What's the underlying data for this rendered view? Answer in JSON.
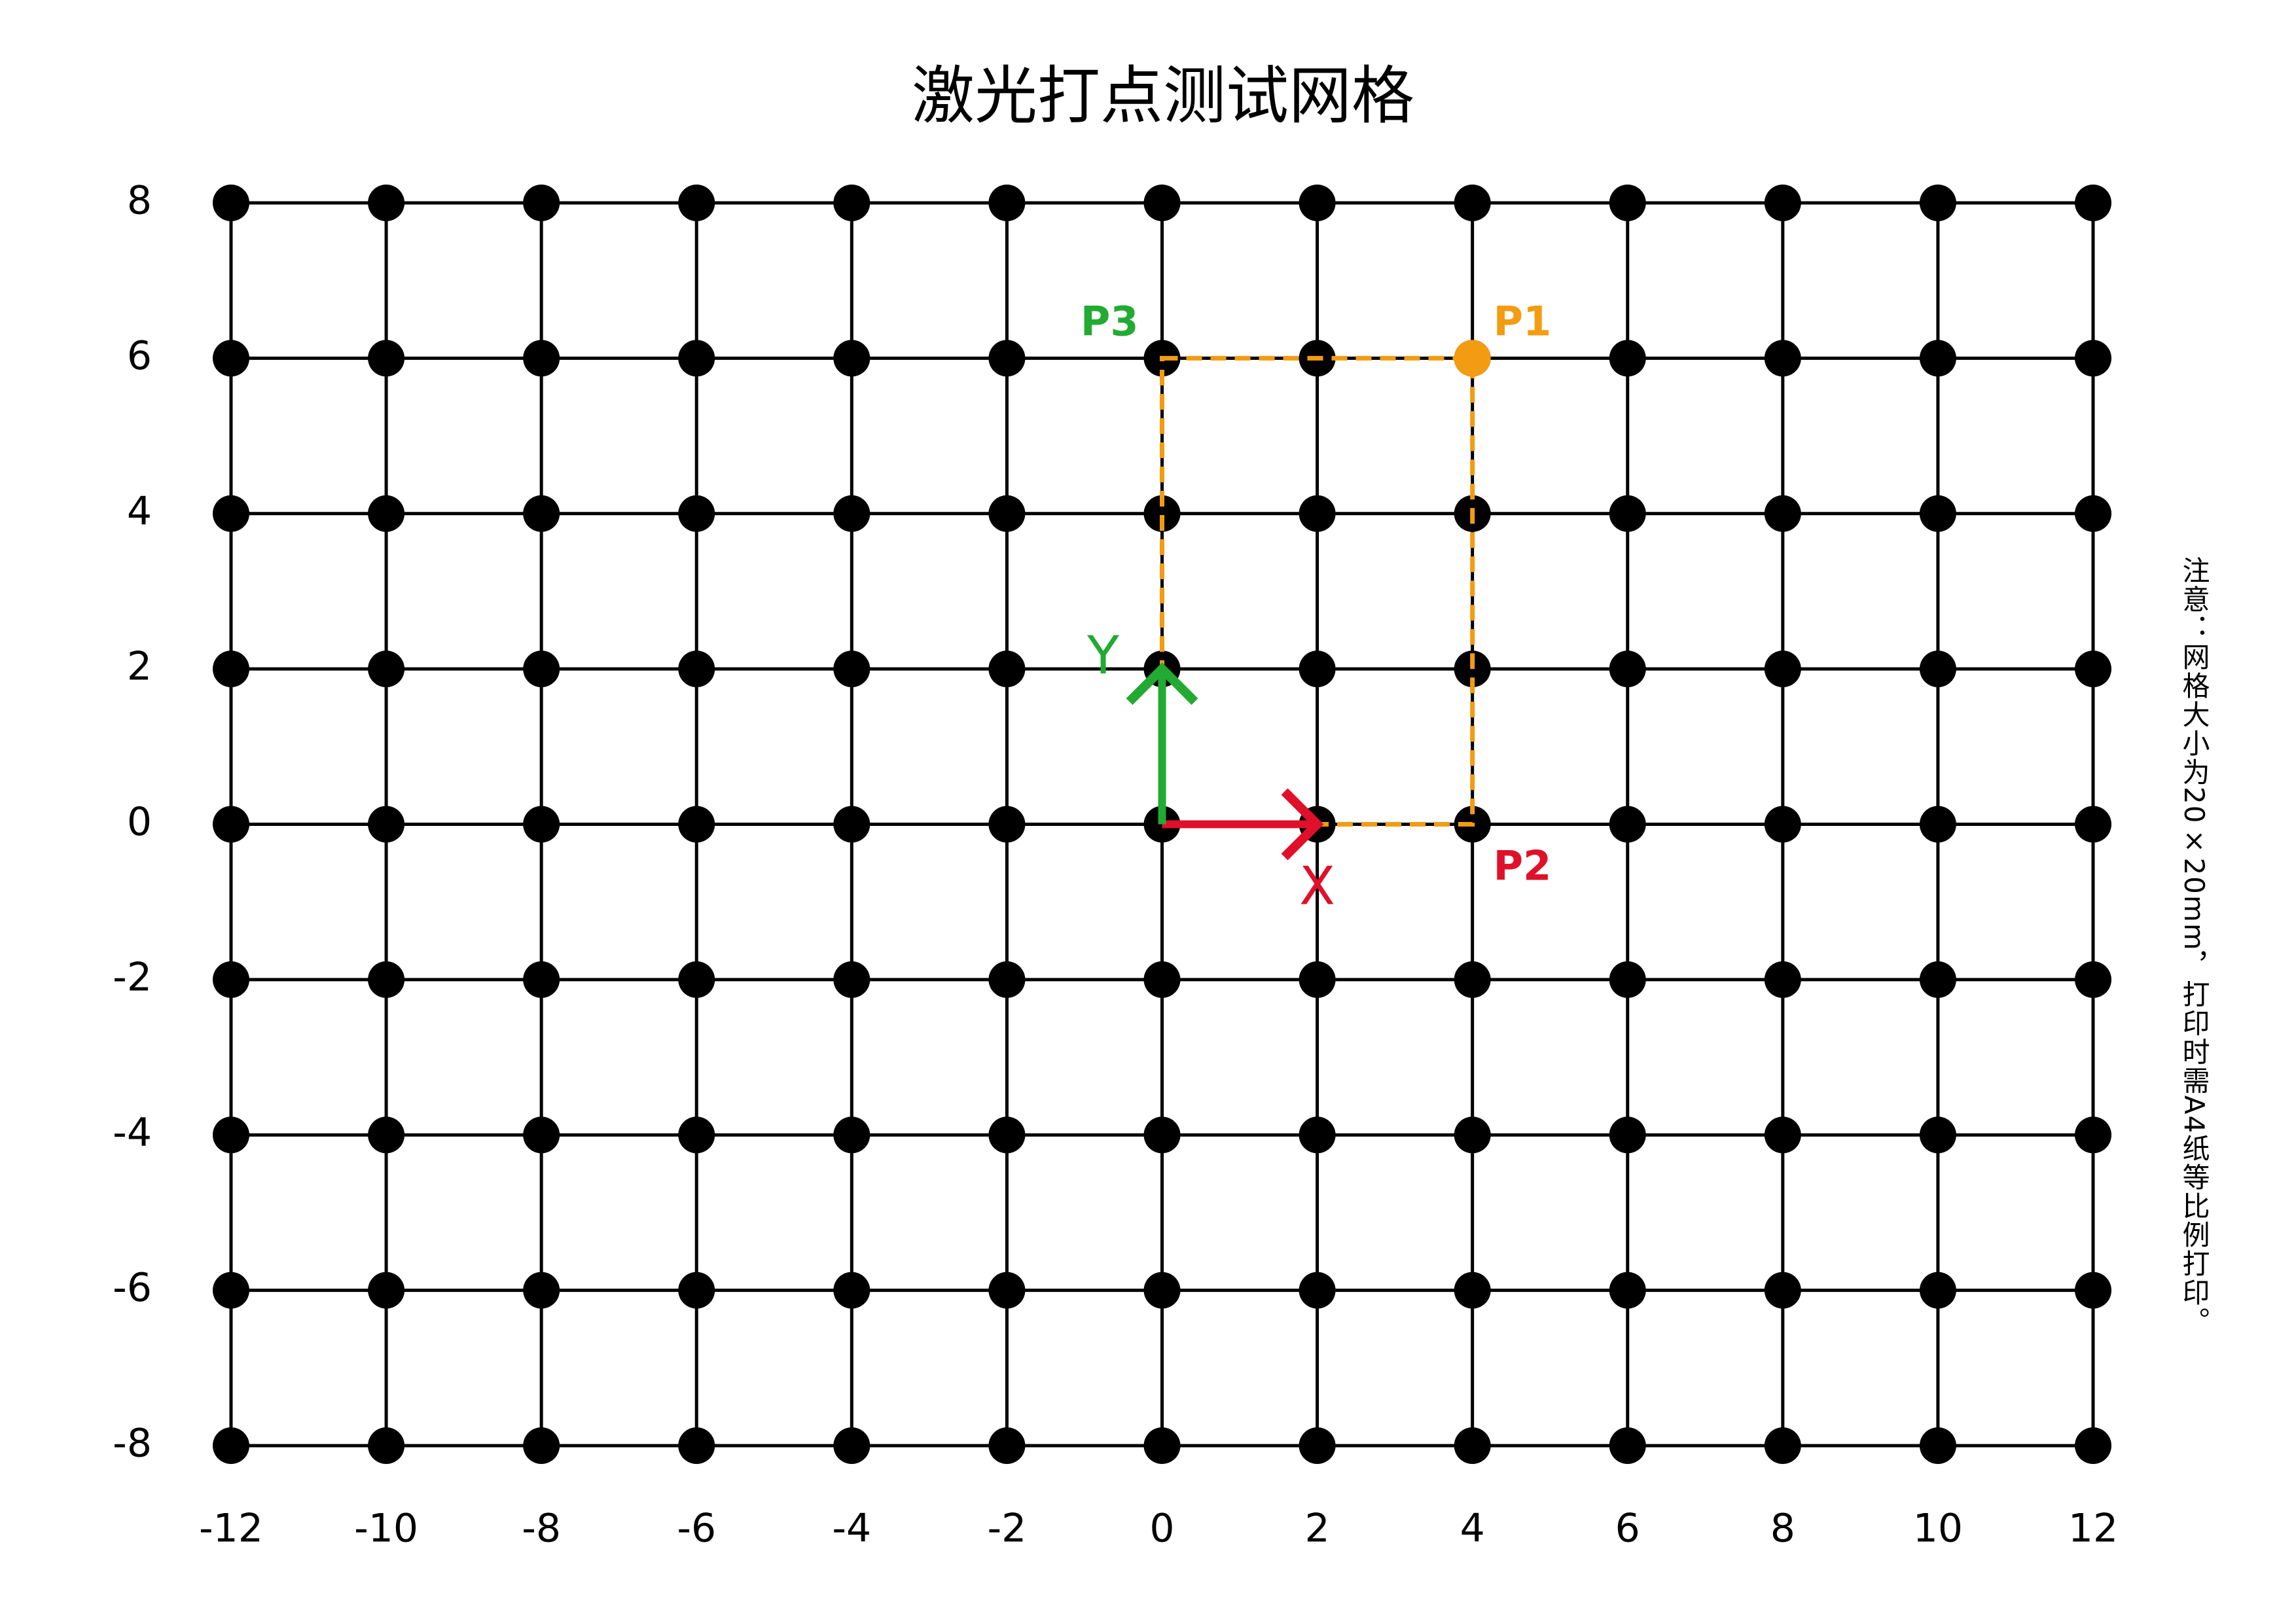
{
  "chart_data": {
    "type": "grid",
    "title": "激光打点测试网格",
    "xlim": [
      -12,
      12
    ],
    "ylim": [
      -8,
      8
    ],
    "xticks": [
      -12,
      -10,
      -8,
      -6,
      -4,
      -2,
      0,
      2,
      4,
      6,
      8,
      10,
      12
    ],
    "yticks": [
      -8,
      -6,
      -4,
      -2,
      0,
      2,
      4,
      6,
      8
    ],
    "grid": true,
    "point_color": "#000000",
    "points": [
      {
        "name": "P1",
        "x": 4,
        "y": 6,
        "color": "#f39c12",
        "marker": true
      },
      {
        "name": "P2",
        "x": 4,
        "y": 0,
        "color": "#e0102a",
        "marker": false
      },
      {
        "name": "P3",
        "x": 0,
        "y": 6,
        "color": "#22aa33",
        "marker": false
      }
    ],
    "rectangle": {
      "x": [
        0,
        4
      ],
      "y": [
        0,
        6
      ],
      "color": "#f39c12"
    },
    "axes_arrows": [
      {
        "name": "X",
        "x": [
          0,
          2
        ],
        "y": [
          0,
          0
        ],
        "color": "#e0102a"
      },
      {
        "name": "Y",
        "x": [
          0,
          0
        ],
        "y": [
          0,
          2
        ],
        "color": "#22aa33"
      }
    ],
    "note": "注意：网格大小为20×20mm，打印时需A4纸等比例打印。"
  }
}
